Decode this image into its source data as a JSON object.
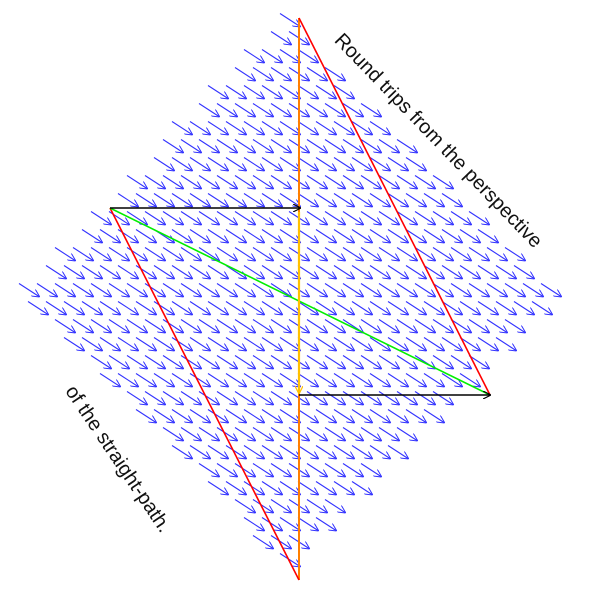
{
  "captions": {
    "top": "Round trips from the perspective",
    "bottom": "of the straight-path."
  },
  "colors": {
    "field_arrows": "#3333ff",
    "diamond_edges": "#ff0000",
    "central_axis": "#ff7f00",
    "axis_segment": "#ffc000",
    "diagonal": "#00ee00",
    "round_trip_arrows": "#000000",
    "text": "#111111"
  },
  "field_arrow_direction": "down-right",
  "scene_elements": [
    "vector field of parallel blue arrows",
    "red diamond outline",
    "orange central vertical axis",
    "yellow vertical arrow on the axis",
    "green diagonal line",
    "two black horizontal arrows"
  ]
}
